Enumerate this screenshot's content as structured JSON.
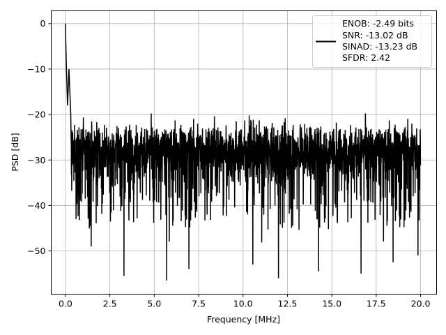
{
  "chart_data": {
    "type": "line",
    "title": "",
    "xlabel": "Frequency [MHz]",
    "ylabel": "PSD [dB]",
    "xlim": [
      -0.8,
      20.9
    ],
    "ylim": [
      -59.5,
      2.8
    ],
    "xticks": [
      0.0,
      2.5,
      5.0,
      7.5,
      10.0,
      12.5,
      15.0,
      17.5,
      20.0
    ],
    "xtick_labels": [
      "0.0",
      "2.5",
      "5.0",
      "7.5",
      "10.0",
      "12.5",
      "15.0",
      "17.5",
      "20.0"
    ],
    "yticks": [
      0,
      -10,
      -20,
      -30,
      -40,
      -50
    ],
    "ytick_labels": [
      "0",
      "−10",
      "−20",
      "−30",
      "−40",
      "−50"
    ],
    "grid": true,
    "legend_position": "top-right",
    "series": [
      {
        "name": "ENOB: -2.49 bits\nSNR: -13.02 dB\nSINAD: -13.23 dB\nSFDR: 2.42",
        "color": "#000000",
        "description_points": {
          "peak": [
            0.0,
            0.0
          ],
          "early_values": [
            [
              0.0,
              0.0
            ],
            [
              0.02,
              -4
            ],
            [
              0.05,
              -9
            ],
            [
              0.08,
              -13
            ],
            [
              0.12,
              -18
            ],
            [
              0.2,
              -10
            ],
            [
              0.3,
              -20
            ]
          ],
          "noise_floor_mean": -28,
          "noise_upper_envelope": -16,
          "notable_minima": [
            [
              0.6,
              -43
            ],
            [
              1.45,
              -49
            ],
            [
              3.3,
              -55.5
            ],
            [
              5.7,
              -56.5
            ],
            [
              6.95,
              -54
            ],
            [
              10.55,
              -53
            ],
            [
              12.0,
              -56
            ],
            [
              14.25,
              -54.5
            ],
            [
              16.65,
              -55
            ],
            [
              18.45,
              -52.5
            ],
            [
              19.85,
              -51
            ]
          ],
          "x_end": 20.0
        }
      }
    ],
    "legend_lines": [
      "ENOB: -2.49 bits",
      "SNR: -13.02 dB",
      "SINAD: -13.23 dB",
      "SFDR: 2.42"
    ]
  }
}
